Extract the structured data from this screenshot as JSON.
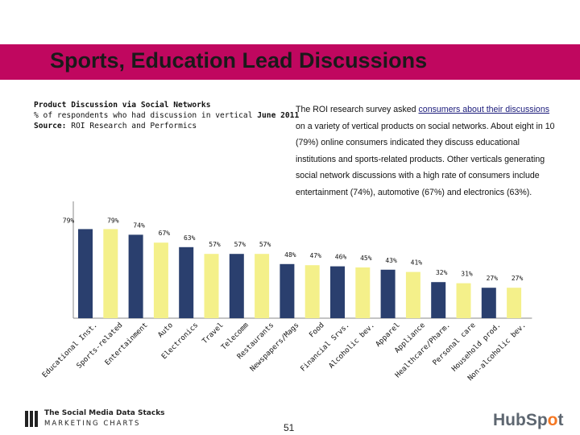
{
  "header": {
    "title": "Sports, Education Lead Discussions",
    "banner_color": "#c0075f"
  },
  "subtitle": {
    "line1": "Product Discussion via Social Networks",
    "line2_prefix": "% of respondents who had discussion in vertical",
    "line2_date": "June 2011",
    "line3_label": "Source:",
    "line3_value": "ROI Research and Performics"
  },
  "description": {
    "part1": "The ROI research survey asked ",
    "link": "consumers about their discussions",
    "part2": " on a variety of vertical products on social networks. About eight in 10 (79%) online consumers indicated they discuss educational institutions and sports-related products. Other verticals generating social network discussions with a high rate of consumers include entertainment (74%), automotive (67%) and electronics (63%)."
  },
  "chart_data": {
    "type": "bar",
    "categories": [
      "Educational Inst.",
      "Sports-related",
      "Entertainment",
      "Auto",
      "Electronics",
      "Travel",
      "Telecomm",
      "Restaurants",
      "Newspapers/Mags",
      "Food",
      "Financial Srvs.",
      "Alcoholic bev.",
      "Apparel",
      "Appliance",
      "Healthcare/Pharm.",
      "Personal care",
      "Household prod.",
      "Non-alcoholic bev."
    ],
    "values": [
      79,
      79,
      74,
      67,
      63,
      57,
      57,
      57,
      48,
      47,
      46,
      45,
      43,
      41,
      32,
      31,
      27,
      27
    ],
    "labels": [
      "79%",
      "79%",
      "74%",
      "67%",
      "63%",
      "57%",
      "57%",
      "57%",
      "48%",
      "47%",
      "46%",
      "45%",
      "43%",
      "41%",
      "32%",
      "31%",
      "27%",
      "27%"
    ],
    "bar_colors": [
      "navy",
      "yellow",
      "navy",
      "yellow",
      "navy",
      "yellow",
      "navy",
      "yellow",
      "navy",
      "yellow",
      "navy",
      "yellow",
      "navy",
      "yellow",
      "navy",
      "yellow",
      "navy",
      "yellow"
    ],
    "colors": {
      "navy": "#2a3f6e",
      "yellow": "#f4f08a",
      "axis": "#888888"
    },
    "ylim": [
      0,
      100
    ]
  },
  "footer": {
    "brand_line1": "The Social Media Data Stacks",
    "brand_line2": "MARKETING CHARTS",
    "page_number": "51",
    "hubspot_pre": "HubSp",
    "hubspot_o": "o",
    "hubspot_post": "t"
  }
}
